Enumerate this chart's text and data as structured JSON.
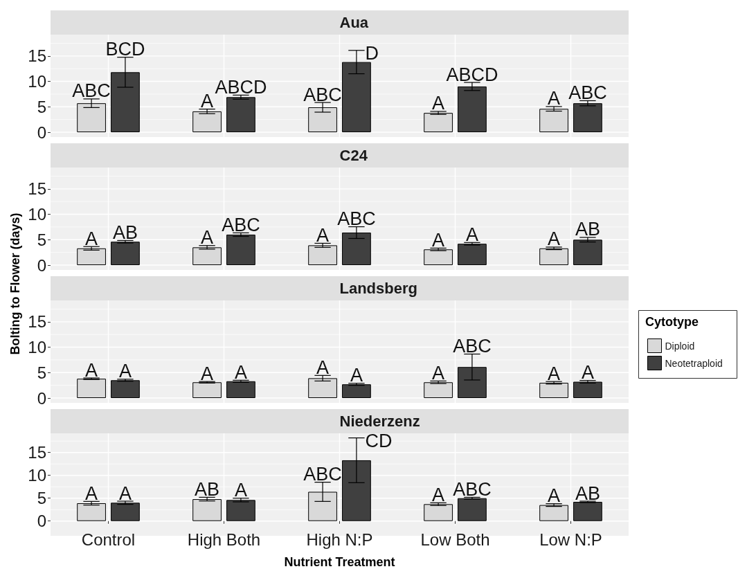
{
  "chart_data": [
    {
      "type": "bar",
      "title": "Aua",
      "categories": [
        null,
        null,
        null,
        null,
        null
      ],
      "series": [
        {
          "color": "#d9d9d9",
          "values": [
            5.7,
            4.1,
            4.9,
            3.8,
            4.6
          ],
          "errors": [
            0.85,
            0.45,
            0.95,
            0.3,
            0.45
          ],
          "value_labels": [
            "ABC",
            "A",
            "ABC",
            "A",
            "A"
          ]
        },
        {
          "color": "#404040",
          "values": [
            11.8,
            6.9,
            13.8,
            9.0,
            5.7
          ],
          "errors": [
            2.95,
            0.4,
            2.3,
            0.8,
            0.5
          ],
          "value_labels": [
            "BCD",
            "ABCD",
            "D",
            "ABCD",
            "ABC"
          ]
        }
      ],
      "ylim": [
        -0.95,
        19.2
      ],
      "yticks": [
        0,
        5,
        10,
        15
      ],
      "grid": true,
      "tick_labels": "y"
    },
    {
      "type": "bar",
      "title": "C24",
      "categories": [
        null,
        null,
        null,
        null,
        null
      ],
      "series": [
        {
          "color": "#d9d9d9",
          "values": [
            3.3,
            3.5,
            3.9,
            3.1,
            3.3
          ],
          "errors": [
            0.35,
            0.35,
            0.4,
            0.25,
            0.25
          ],
          "value_labels": [
            "A",
            "A",
            "A",
            "A",
            "A"
          ]
        },
        {
          "color": "#404040",
          "values": [
            4.6,
            6.0,
            6.4,
            4.2,
            5.0
          ],
          "errors": [
            0.25,
            0.35,
            1.15,
            0.25,
            0.45
          ],
          "value_labels": [
            "AB",
            "ABC",
            "ABC",
            "A",
            "AB"
          ]
        }
      ],
      "ylim": [
        -0.95,
        19.2
      ],
      "yticks": [
        0,
        5,
        10,
        15
      ],
      "grid": true,
      "tick_labels": "y"
    },
    {
      "type": "bar",
      "title": "Landsberg",
      "ylabel": "Bolting to Flower (days)",
      "legend": "right",
      "legend_title": "Cytotype",
      "categories": [
        null,
        null,
        null,
        null,
        null
      ],
      "series": [
        {
          "name": "Diploid",
          "color": "#d9d9d9",
          "values": [
            3.8,
            3.1,
            3.9,
            3.1,
            3.0
          ],
          "errors": [
            0.15,
            0.15,
            0.55,
            0.25,
            0.25
          ],
          "value_labels": [
            "A",
            "A",
            "A",
            "A",
            "A"
          ]
        },
        {
          "name": "Neotetraploid",
          "color": "#404040",
          "values": [
            3.5,
            3.3,
            2.7,
            6.1,
            3.2
          ],
          "errors": [
            0.2,
            0.2,
            0.2,
            2.55,
            0.25
          ],
          "value_labels": [
            "A",
            "A",
            "A",
            "ABC",
            "A"
          ]
        }
      ],
      "ylim": [
        -0.95,
        19.2
      ],
      "yticks": [
        0,
        5,
        10,
        15
      ],
      "grid": true,
      "tick_labels": "y"
    },
    {
      "type": "bar",
      "title": "Niederzenz",
      "xlabel": "Nutrient Treatment",
      "categories": [
        "Control",
        "High Both",
        "High N:P",
        "Low Both",
        "Low N:P"
      ],
      "series": [
        {
          "color": "#d9d9d9",
          "values": [
            3.9,
            4.8,
            6.4,
            3.7,
            3.5
          ],
          "errors": [
            0.4,
            0.4,
            2.1,
            0.3,
            0.3
          ],
          "value_labels": [
            "A",
            "AB",
            "ABC",
            "A",
            "A"
          ]
        },
        {
          "color": "#404040",
          "values": [
            4.0,
            4.6,
            13.3,
            5.0,
            4.2
          ],
          "errors": [
            0.35,
            0.4,
            4.9,
            0.2,
            0.15
          ],
          "value_labels": [
            "A",
            "A",
            "CD",
            "ABC",
            "AB"
          ]
        }
      ],
      "ylim": [
        -0.95,
        19.2
      ],
      "yticks": [
        0,
        5,
        10,
        15
      ],
      "grid": true
    }
  ]
}
